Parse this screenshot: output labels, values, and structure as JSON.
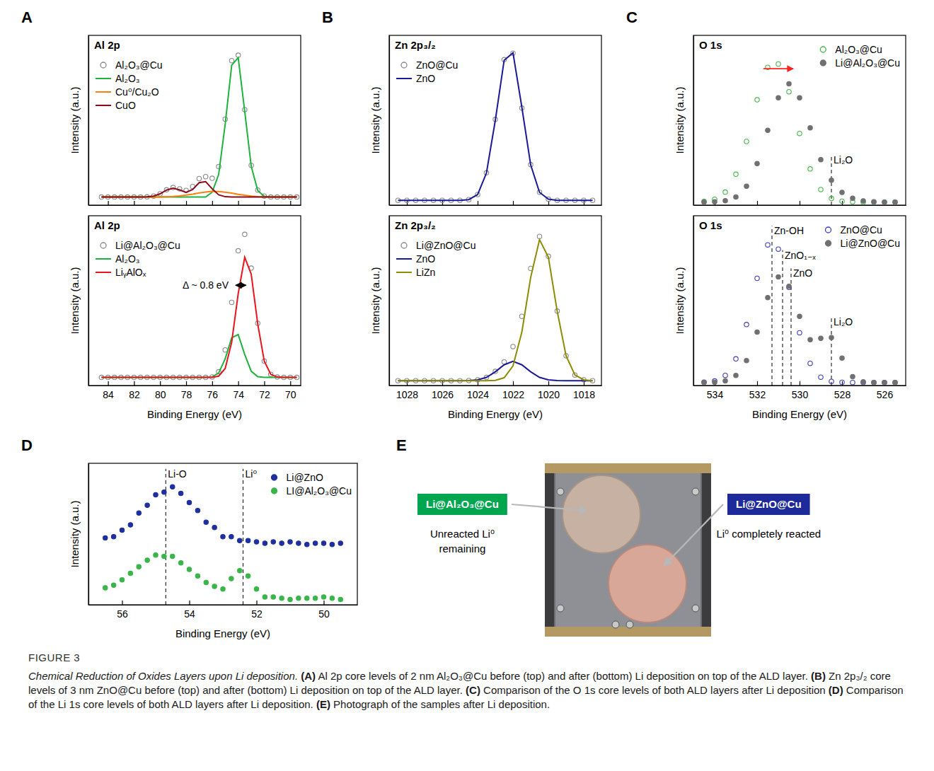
{
  "chart_data": [
    {
      "type": "line",
      "panel": "A",
      "title": "Al 2p",
      "ylabel": "Intensity (a.u.)",
      "xlim": [
        85.5,
        69.2
      ],
      "xticks": [
        84,
        82,
        80,
        78,
        76,
        74,
        72,
        70
      ],
      "ylim": [
        0,
        1.05
      ],
      "tick_labels": false,
      "legend": "upper left",
      "x": [
        84.5,
        84,
        83.5,
        83,
        82.5,
        82,
        81.5,
        81,
        80.5,
        80,
        79.5,
        79,
        78.5,
        78,
        77.5,
        77,
        76.5,
        76,
        75.5,
        75,
        74.5,
        74,
        73.5,
        73,
        72.5,
        72,
        71.5,
        71,
        70.5,
        70,
        69.5
      ],
      "series": [
        {
          "name": "Al₂O₃@Cu",
          "type": "scatter",
          "marker": "circle",
          "color": "#8a8a8a",
          "values": [
            0.05,
            0.05,
            0.05,
            0.05,
            0.05,
            0.05,
            0.05,
            0.051,
            0.056,
            0.07,
            0.095,
            0.109,
            0.101,
            0.091,
            0.115,
            0.164,
            0.176,
            0.166,
            0.238,
            0.532,
            0.894,
            0.927,
            0.591,
            0.246,
            0.093,
            0.056,
            0.05,
            0.05,
            0.05,
            0.05,
            0.05
          ]
        },
        {
          "name": "Al₂O₃",
          "type": "line",
          "color": "#1db33c",
          "values": [
            0.05,
            0.05,
            0.05,
            0.05,
            0.05,
            0.05,
            0.05,
            0.05,
            0.05,
            0.05,
            0.05,
            0.05,
            0.05,
            0.05,
            0.05,
            0.05,
            0.05,
            0.08,
            0.19,
            0.5,
            0.866,
            0.912,
            0.58,
            0.24,
            0.09,
            0.055,
            0.05,
            0.05,
            0.05,
            0.05,
            0.05
          ]
        },
        {
          "name": "Cu⁰/Cu₂O",
          "type": "line",
          "color": "#ff7f0e",
          "values": [
            0.05,
            0.05,
            0.05,
            0.05,
            0.05,
            0.05,
            0.05,
            0.05,
            0.05,
            0.05,
            0.052,
            0.054,
            0.057,
            0.062,
            0.068,
            0.075,
            0.081,
            0.085,
            0.084,
            0.08,
            0.074,
            0.067,
            0.061,
            0.056,
            0.053,
            0.051,
            0.05,
            0.05,
            0.05,
            0.05,
            0.05
          ]
        },
        {
          "name": "CuO",
          "type": "line",
          "color": "#8b0a1a",
          "values": [
            0.05,
            0.05,
            0.05,
            0.05,
            0.05,
            0.05,
            0.05,
            0.051,
            0.056,
            0.07,
            0.093,
            0.105,
            0.094,
            0.079,
            0.097,
            0.139,
            0.145,
            0.101,
            0.064,
            0.052,
            0.05,
            0.05,
            0.05,
            0.05,
            0.05,
            0.05,
            0.05,
            0.05,
            0.05,
            0.05,
            0.05
          ]
        }
      ]
    },
    {
      "type": "line",
      "title": "Al 2p",
      "ylabel": "Intensity (a.u.)",
      "xlabel": "Binding Energy (eV)",
      "xlim": [
        85.5,
        69.2
      ],
      "xticks": [
        84,
        82,
        80,
        78,
        76,
        74,
        72,
        70
      ],
      "ylim": [
        0,
        1.05
      ],
      "tick_labels": "x",
      "legend": "upper left",
      "x": [
        84.5,
        84,
        83.5,
        83,
        82.5,
        82,
        81.5,
        81,
        80.5,
        80,
        79.5,
        79,
        78.5,
        78,
        77.5,
        77,
        76.5,
        76,
        75.5,
        75,
        74.5,
        74,
        73.5,
        73,
        72.5,
        72,
        71.5,
        71,
        70.5,
        70,
        69.5
      ],
      "series": [
        {
          "name": "Li@Al₂O₃@Cu",
          "type": "scatter",
          "marker": "circle",
          "color": "#8a8a8a",
          "values": [
            0.05,
            0.05,
            0.05,
            0.05,
            0.05,
            0.05,
            0.05,
            0.05,
            0.05,
            0.05,
            0.05,
            0.05,
            0.05,
            0.05,
            0.05,
            0.05,
            0.05,
            0.053,
            0.085,
            0.22,
            0.514,
            0.833,
            0.935,
            0.726,
            0.385,
            0.151,
            0.069,
            0.052,
            0.05,
            0.05,
            0.05
          ]
        },
        {
          "name": "Al₂O₃",
          "type": "line",
          "color": "#1db33c",
          "values": [
            0.05,
            0.05,
            0.05,
            0.05,
            0.05,
            0.05,
            0.05,
            0.05,
            0.05,
            0.05,
            0.05,
            0.05,
            0.05,
            0.05,
            0.05,
            0.05,
            0.05,
            0.053,
            0.077,
            0.165,
            0.296,
            0.315,
            0.192,
            0.088,
            0.055,
            0.05,
            0.05,
            0.05,
            0.05,
            0.05,
            0.05
          ]
        },
        {
          "name": "LiᵧAlOₓ",
          "type": "line",
          "color": "#e8141e",
          "values": [
            0.05,
            0.05,
            0.05,
            0.05,
            0.05,
            0.05,
            0.05,
            0.05,
            0.05,
            0.05,
            0.05,
            0.05,
            0.05,
            0.05,
            0.05,
            0.05,
            0.05,
            0.05,
            0.058,
            0.105,
            0.268,
            0.568,
            0.793,
            0.688,
            0.38,
            0.151,
            0.069,
            0.052,
            0.05,
            0.05,
            0.05
          ]
        }
      ],
      "annotations": [
        {
          "text": "Δ ~ 0.8 eV",
          "x": [
            74.2,
            73.4
          ],
          "y": 0.62,
          "line_style": "double-arrow",
          "color": "#000000"
        }
      ]
    },
    {
      "type": "line",
      "panel": "B",
      "title": "Zn 2p₃/₂",
      "ylabel": "Intensity (a.u.)",
      "xlim": [
        1029,
        1017
      ],
      "xticks": [
        1028,
        1026,
        1024,
        1022,
        1020,
        1018
      ],
      "ylim": [
        0,
        1.05
      ],
      "tick_labels": false,
      "legend": "upper left",
      "x": [
        1028.5,
        1028,
        1027.5,
        1027,
        1026.5,
        1026,
        1025.5,
        1025,
        1024.5,
        1024,
        1023.5,
        1023,
        1022.5,
        1022,
        1021.5,
        1021,
        1020.5,
        1020,
        1019.5,
        1019,
        1018.5,
        1018,
        1017.5
      ],
      "series": [
        {
          "name": "ZnO@Cu",
          "type": "scatter",
          "marker": "circle",
          "color": "#8a8a8a",
          "values": [
            0.03,
            0.03,
            0.03,
            0.03,
            0.03,
            0.03,
            0.03,
            0.03,
            0.034,
            0.066,
            0.2,
            0.53,
            0.9,
            0.94,
            0.6,
            0.25,
            0.08,
            0.037,
            0.03,
            0.03,
            0.03,
            0.03,
            0.03
          ]
        },
        {
          "name": "ZnO",
          "type": "line",
          "color": "#1a1a99",
          "values": [
            0.03,
            0.03,
            0.03,
            0.03,
            0.03,
            0.03,
            0.03,
            0.03,
            0.034,
            0.065,
            0.199,
            0.524,
            0.896,
            0.942,
            0.606,
            0.249,
            0.079,
            0.037,
            0.03,
            0.03,
            0.03,
            0.03,
            0.03
          ]
        }
      ]
    },
    {
      "type": "line",
      "title": "Zn 2p₃/₂",
      "ylabel": "Intensity (a.u.)",
      "xlabel": "Binding Energy (eV)",
      "xlim": [
        1029,
        1017
      ],
      "xticks": [
        1028,
        1026,
        1024,
        1022,
        1020,
        1018
      ],
      "ylim": [
        0,
        1.05
      ],
      "tick_labels": "x",
      "legend": "upper left",
      "x": [
        1028.5,
        1028,
        1027.5,
        1027,
        1026.5,
        1026,
        1025.5,
        1025,
        1024.5,
        1024,
        1023.5,
        1023,
        1022.5,
        1022,
        1021.5,
        1021,
        1020.5,
        1020,
        1019.5,
        1019,
        1018.5,
        1018,
        1017.5
      ],
      "series": [
        {
          "name": "Li@ZnO@Cu",
          "type": "scatter",
          "marker": "circle",
          "color": "#8a8a8a",
          "values": [
            0.03,
            0.03,
            0.03,
            0.03,
            0.03,
            0.03,
            0.03,
            0.03,
            0.031,
            0.035,
            0.05,
            0.087,
            0.146,
            0.241,
            0.428,
            0.724,
            0.922,
            0.799,
            0.46,
            0.184,
            0.065,
            0.035,
            0.03
          ]
        },
        {
          "name": "ZnO",
          "type": "line",
          "color": "#1a1a99",
          "values": [
            0.03,
            0.03,
            0.03,
            0.03,
            0.03,
            0.03,
            0.03,
            0.03,
            0.031,
            0.035,
            0.05,
            0.085,
            0.128,
            0.15,
            0.128,
            0.085,
            0.05,
            0.035,
            0.031,
            0.03,
            0.03,
            0.03,
            0.03
          ]
        },
        {
          "name": "LiZn",
          "type": "line",
          "color": "#8c8c00",
          "values": [
            0.03,
            0.03,
            0.03,
            0.03,
            0.03,
            0.03,
            0.03,
            0.03,
            0.03,
            0.03,
            0.03,
            0.032,
            0.048,
            0.121,
            0.33,
            0.669,
            0.902,
            0.794,
            0.459,
            0.184,
            0.065,
            0.035,
            0.03
          ]
        }
      ]
    },
    {
      "type": "line",
      "panel": "C",
      "title": "O 1s",
      "ylabel": "Intensity (a.u.)",
      "xlim": [
        535,
        525
      ],
      "xticks": [
        534,
        532,
        530,
        528,
        526
      ],
      "ylim": [
        0,
        1.12
      ],
      "tick_labels": false,
      "legend": "upper right",
      "x": [
        534.5,
        534,
        533.5,
        533,
        532.5,
        532,
        531.5,
        531,
        530.5,
        530,
        529.5,
        529,
        528.5,
        528,
        527.5,
        527,
        526.5,
        526,
        525.5
      ],
      "series": [
        {
          "name": "Al₂O₃@Cu",
          "type": "scatter",
          "marker": "circle",
          "color": "#45b549",
          "values": [
            0.024,
            0.039,
            0.086,
            0.204,
            0.42,
            0.695,
            0.909,
            0.931,
            0.748,
            0.473,
            0.239,
            0.103,
            0.044,
            0.026,
            0.022,
            0.02,
            0.02,
            0.02,
            0.02
          ]
        },
        {
          "name": "Li@Al₂O₃@Cu",
          "type": "scatter",
          "marker": "dot",
          "color": "#707070",
          "values": [
            0.02,
            0.022,
            0.029,
            0.054,
            0.125,
            0.274,
            0.493,
            0.708,
            0.8,
            0.708,
            0.51,
            0.3,
            0.165,
            0.084,
            0.045,
            0.028,
            0.022,
            0.02,
            0.02
          ]
        }
      ],
      "reference_lines": [
        {
          "x": 528.5,
          "y": 0.3,
          "label": "Li₂O"
        }
      ],
      "annotations": [
        {
          "x": [
            531.7,
            530.3
          ],
          "y": 0.9,
          "line_style": "arrow",
          "color": "#ff2020"
        }
      ]
    },
    {
      "type": "line",
      "title": "O 1s",
      "ylabel": "Intensity (a.u.)",
      "xlabel": "Binding Energy (eV)",
      "xlim": [
        535,
        525
      ],
      "xticks": [
        534,
        532,
        530,
        528,
        526
      ],
      "ylim": [
        0,
        1.12
      ],
      "tick_labels": "x",
      "legend": "upper right",
      "x": [
        534.5,
        534,
        533.5,
        533,
        532.5,
        532,
        531.5,
        531,
        530.5,
        530,
        529.5,
        529,
        528.5,
        528,
        527.5,
        527,
        526.5,
        526,
        525.5
      ],
      "series": [
        {
          "name": "ZnO@Cu",
          "type": "scatter",
          "marker": "circle",
          "color": "#3d3db5",
          "values": [
            0.022,
            0.03,
            0.067,
            0.176,
            0.402,
            0.707,
            0.928,
            0.9,
            0.647,
            0.348,
            0.146,
            0.055,
            0.027,
            0.021,
            0.02,
            0.02,
            0.02,
            0.02,
            0.02
          ]
        },
        {
          "name": "Li@ZnO@Cu",
          "type": "scatter",
          "marker": "dot",
          "color": "#707070",
          "values": [
            0.02,
            0.021,
            0.03,
            0.066,
            0.164,
            0.352,
            0.58,
            0.716,
            0.654,
            0.456,
            0.302,
            0.311,
            0.316,
            0.181,
            0.058,
            0.024,
            0.02,
            0.02,
            0.02
          ]
        }
      ],
      "reference_lines": [
        {
          "x": 531.3,
          "y": 1.02,
          "label": "Zn-OH"
        },
        {
          "x": 530.8,
          "y": 0.86,
          "label": "ZnO₁₋ₓ"
        },
        {
          "x": 530.4,
          "y": 0.74,
          "label": "ZnO"
        },
        {
          "x": 528.5,
          "y": 0.42,
          "label": "Li₂O"
        }
      ]
    },
    {
      "type": "scatter",
      "panel": "D",
      "ylabel": "Intensity (a.u.)",
      "xlabel": "Binding Energy (eV)",
      "xlim": [
        57,
        49
      ],
      "xticks": [
        56,
        54,
        52,
        50
      ],
      "ylim": [
        0,
        1.08
      ],
      "tick_labels": "x",
      "legend": "upper right",
      "x": [
        56.5,
        56.25,
        56,
        55.75,
        55.5,
        55.25,
        55,
        54.75,
        54.5,
        54.25,
        54,
        53.75,
        53.5,
        53.25,
        53,
        52.75,
        52.5,
        52.25,
        52,
        51.75,
        51.5,
        51.25,
        51,
        50.75,
        50.5,
        50.25,
        50,
        49.75,
        49.5
      ],
      "series": [
        {
          "name": "Li@ZnO",
          "marker": "dot",
          "color": "#1f2f9e",
          "values": [
            0.51,
            0.52,
            0.57,
            0.61,
            0.7,
            0.76,
            0.84,
            0.86,
            0.9,
            0.85,
            0.78,
            0.72,
            0.63,
            0.59,
            0.52,
            0.52,
            0.49,
            0.49,
            0.48,
            0.47,
            0.48,
            0.47,
            0.48,
            0.47,
            0.46,
            0.47,
            0.47,
            0.46,
            0.47
          ]
        },
        {
          "name": "LI@Al₂O₃@Cu",
          "marker": "dot",
          "color": "#3ab54a",
          "values": [
            0.13,
            0.15,
            0.19,
            0.24,
            0.29,
            0.34,
            0.38,
            0.37,
            0.37,
            0.32,
            0.27,
            0.22,
            0.17,
            0.14,
            0.12,
            0.2,
            0.26,
            0.22,
            0.12,
            0.06,
            0.06,
            0.05,
            0.04,
            0.05,
            0.05,
            0.05,
            0.06,
            0.05,
            0.04
          ]
        }
      ],
      "reference_lines": [
        {
          "x": 54.7,
          "y": 1.0,
          "label": "Li-O"
        },
        {
          "x": 52.4,
          "y": 1.0,
          "label": "Li⁰"
        }
      ]
    }
  ],
  "photo": {
    "panel": "E",
    "samples": [
      {
        "label": "Li@Al₂O₃@Cu",
        "note": "Unreacted Li⁰ remaining",
        "color": "#00a64f"
      },
      {
        "label": "Li@ZnO@Cu",
        "note": "Li⁰ completely reacted",
        "color": "#1f2a9a"
      }
    ]
  },
  "caption": {
    "label": "FIGURE 3",
    "title": "Chemical Reduction of Oxides Layers upon Li deposition.",
    "items": [
      {
        "letter": "(A)",
        "text": "Al 2p core levels of 2 nm Al₂O₃@Cu before (top) and after (bottom) Li deposition on top of the ALD layer."
      },
      {
        "letter": "(B)",
        "text": "Zn 2p₃/₂ core levels of 3 nm ZnO@Cu before (top) and after (bottom) Li deposition on top of the ALD layer."
      },
      {
        "letter": "(C)",
        "text": "Comparison of the O 1s core levels of both ALD layers after Li deposition"
      },
      {
        "letter": "(D)",
        "text": "Comparison of the Li 1s core levels of both ALD layers after Li deposition."
      },
      {
        "letter": "(E)",
        "text": "Photograph of the samples after Li deposition."
      }
    ]
  }
}
